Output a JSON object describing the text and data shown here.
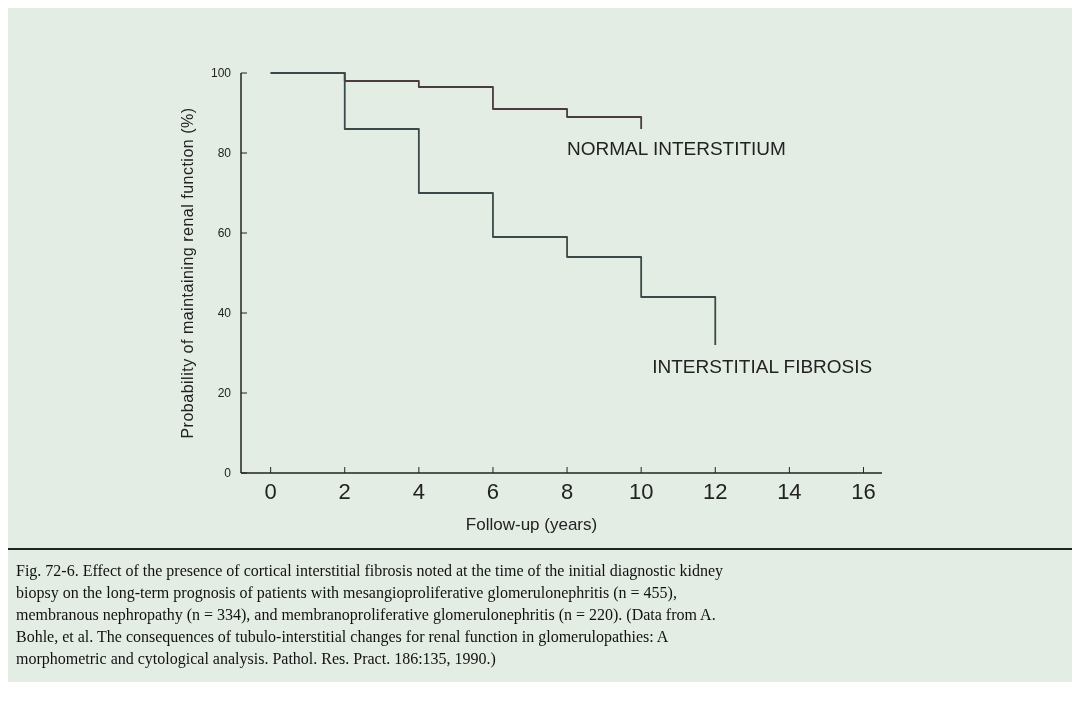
{
  "chart_data": {
    "type": "step",
    "xlabel": "Follow-up (years)",
    "ylabel": "Probability of maintaining renal function (%)",
    "xlim": [
      -0.8,
      16.5
    ],
    "xticks": [
      0,
      2,
      4,
      6,
      8,
      10,
      12,
      14,
      16
    ],
    "ylim": [
      0,
      100
    ],
    "yticks": [
      0,
      20,
      40,
      60,
      80,
      100
    ],
    "grid": false,
    "series": [
      {
        "name": "NORMAL INTERSTITIUM",
        "color": "#4a3a42",
        "x": [
          0,
          2,
          4,
          6,
          8,
          10,
          10
        ],
        "values": [
          100,
          98,
          96.5,
          91,
          89,
          89,
          86
        ]
      },
      {
        "name": "INTERSTITIAL FIBROSIS",
        "color": "#3a4a48",
        "x": [
          0,
          2,
          4,
          6,
          8,
          10,
          12,
          12
        ],
        "values": [
          100,
          86,
          70,
          59,
          54,
          44,
          44,
          32
        ]
      }
    ],
    "annotations": [
      "Fig. 72-6. Effect of the presence of cortical interstitial fibrosis noted at the time of the initial diagnostic kidney biopsy on the long-term prognosis of patients with mesangioproliferative glomerulonephritis (n = 455), membranous nephropathy (n = 334), and membranoproliferative glomerulonephritis (n = 220). (Data from A. Bohle, et al. The consequences of tubulo-interstitial changes for renal function in glomerulopathies: A morphometric and cytological analysis. Pathol. Res. Pract. 186:135, 1990.)"
    ]
  }
}
